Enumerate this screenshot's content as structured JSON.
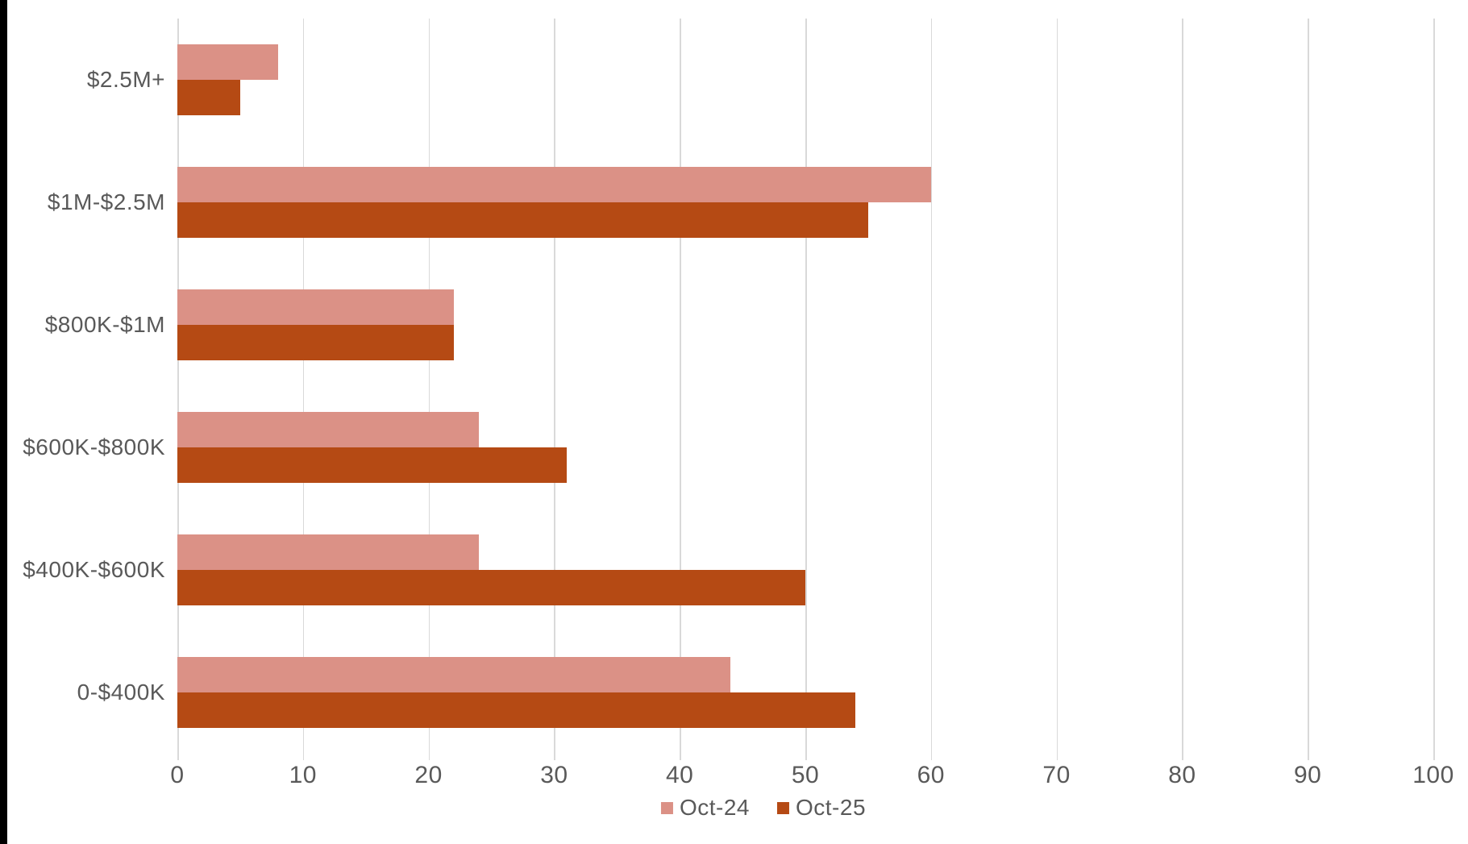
{
  "chart_data": {
    "type": "bar",
    "orientation": "horizontal",
    "title": "",
    "xlabel": "",
    "ylabel": "",
    "categories_top_to_bottom": [
      "$2.5M+",
      "$1M-$2.5M",
      "$800K-$1M",
      "$600K-$800K",
      "$400K-$600K",
      "0-$400K"
    ],
    "series": [
      {
        "name": "Oct-24",
        "color": "#db9186",
        "values": [
          8,
          60,
          22,
          24,
          24,
          44
        ]
      },
      {
        "name": "Oct-25",
        "color": "#b54a14",
        "values": [
          5,
          55,
          22,
          31,
          50,
          54
        ]
      }
    ],
    "xlim": [
      0,
      100
    ],
    "x_ticks": [
      0,
      10,
      20,
      30,
      40,
      50,
      60,
      70,
      80,
      90,
      100
    ],
    "grid": "vertical",
    "legend_position": "bottom"
  },
  "colors": {
    "gridline": "#d9d9d9",
    "axis_text": "#595959",
    "background": "#ffffff",
    "left_strip": "#000000"
  }
}
